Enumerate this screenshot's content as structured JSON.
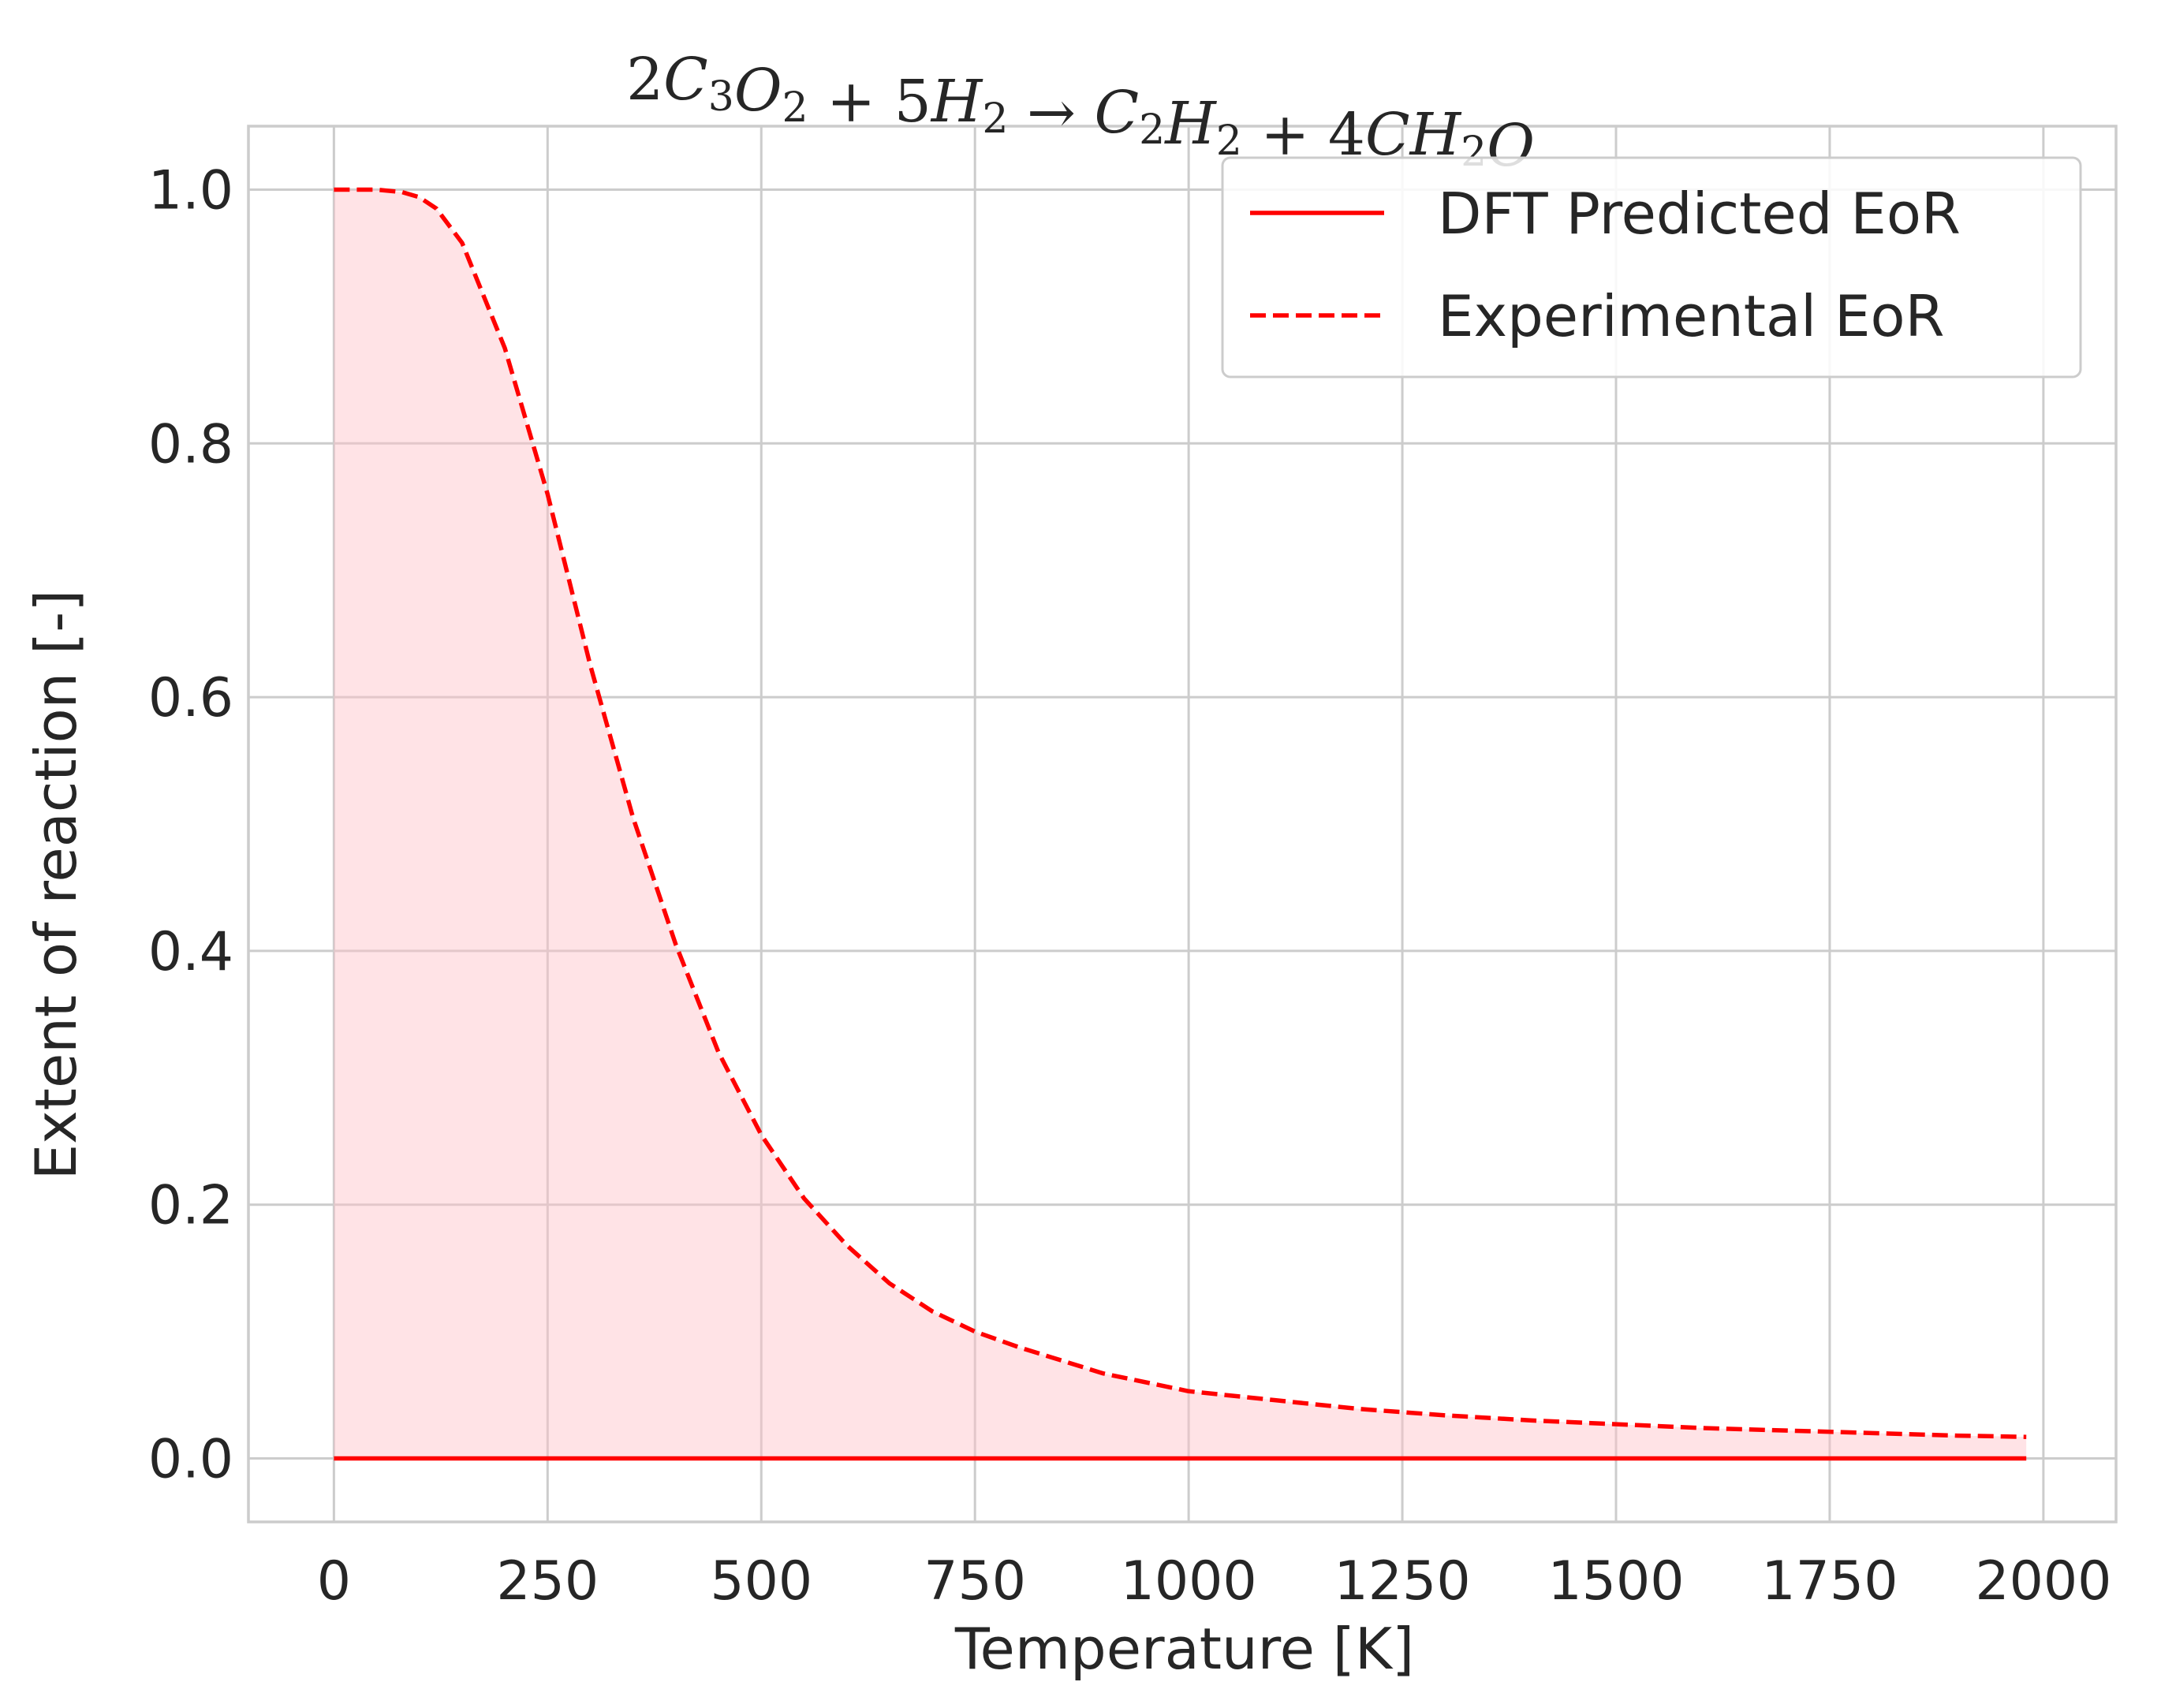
{
  "chart_data": {
    "type": "line",
    "title": "2C3O2 + 5H2 → C2H2 + 4CH2O",
    "title_parts": [
      {
        "t": "2",
        "k": "num"
      },
      {
        "t": "C",
        "k": "var"
      },
      {
        "t": "3",
        "k": "sub"
      },
      {
        "t": "O",
        "k": "var"
      },
      {
        "t": "2",
        "k": "sub"
      },
      {
        "t": " + ",
        "k": "num"
      },
      {
        "t": "5",
        "k": "num"
      },
      {
        "t": "H",
        "k": "var"
      },
      {
        "t": "2",
        "k": "sub"
      },
      {
        "t": " → ",
        "k": "num"
      },
      {
        "t": "C",
        "k": "var"
      },
      {
        "t": "2",
        "k": "sub"
      },
      {
        "t": "H",
        "k": "var"
      },
      {
        "t": "2",
        "k": "sub"
      },
      {
        "t": " + ",
        "k": "num"
      },
      {
        "t": "4",
        "k": "num"
      },
      {
        "t": "CH",
        "k": "var"
      },
      {
        "t": "2",
        "k": "sub"
      },
      {
        "t": "O",
        "k": "var"
      }
    ],
    "xlabel": "Temperature [K]",
    "ylabel": "Extent of reaction [-]",
    "xlim": [
      -100,
      2085
    ],
    "ylim": [
      -0.05,
      1.05
    ],
    "xticks": [
      0,
      250,
      500,
      750,
      1000,
      1250,
      1500,
      1750,
      2000
    ],
    "xtick_labels": [
      "0",
      "250",
      "500",
      "750",
      "1000",
      "1250",
      "1500",
      "1750",
      "2000"
    ],
    "yticks": [
      0.0,
      0.2,
      0.4,
      0.6,
      0.8,
      1.0
    ],
    "ytick_labels": [
      "0.0",
      "0.2",
      "0.4",
      "0.6",
      "0.8",
      "1.0"
    ],
    "grid": true,
    "legend_position": "top-right",
    "fill_between": {
      "series": "Experimental EoR",
      "baseline": 0,
      "color": "#ffc0c8",
      "opacity": 0.45
    },
    "series": [
      {
        "name": "DFT Predicted EoR",
        "style": "solid",
        "color": "#ff0000",
        "x": [
          0,
          250,
          500,
          750,
          1000,
          1250,
          1500,
          1750,
          1980
        ],
        "y": [
          0,
          0,
          0,
          0,
          0,
          0,
          0,
          0,
          0
        ]
      },
      {
        "name": "Experimental EoR",
        "style": "dashed",
        "color": "#ff0000",
        "x": [
          0,
          50,
          80,
          100,
          120,
          150,
          200,
          250,
          300,
          350,
          400,
          450,
          500,
          550,
          600,
          650,
          700,
          750,
          800,
          900,
          1000,
          1100,
          1200,
          1300,
          1400,
          1500,
          1600,
          1700,
          1800,
          1900,
          1980
        ],
        "y": [
          1.0,
          1.0,
          0.998,
          0.994,
          0.985,
          0.958,
          0.875,
          0.76,
          0.625,
          0.505,
          0.405,
          0.32,
          0.255,
          0.205,
          0.168,
          0.138,
          0.116,
          0.1,
          0.088,
          0.067,
          0.053,
          0.046,
          0.039,
          0.034,
          0.03,
          0.027,
          0.024,
          0.022,
          0.02,
          0.018,
          0.017
        ]
      }
    ]
  }
}
